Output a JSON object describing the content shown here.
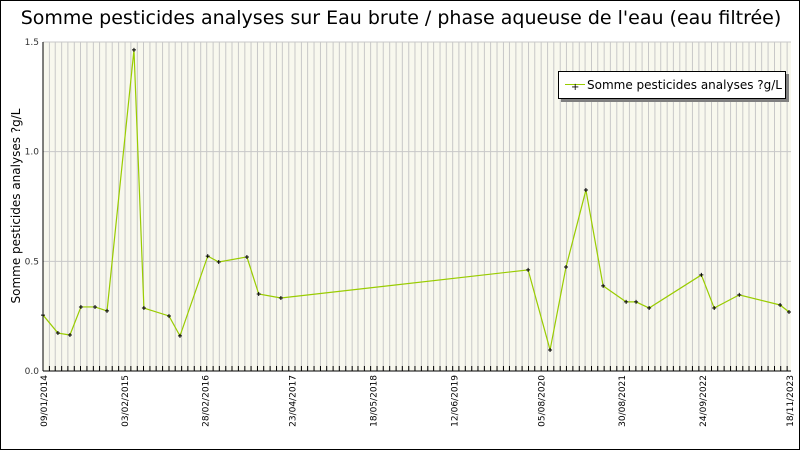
{
  "chart_data": {
    "type": "line",
    "title": "Somme pesticides analyses sur Eau brute / phase aqueuse de l'eau (eau filtrée)",
    "ylabel": "Somme pesticides analyses ?g/L",
    "xlabel": "",
    "ylim": [
      0,
      1.5
    ],
    "xlim": [
      "2014-01-09",
      "2023-11-18"
    ],
    "yticks": [
      "0.0",
      "0.5",
      "1.0",
      "1.5"
    ],
    "xticks": [
      {
        "label": "09/01/2014",
        "date": "2014-01-09"
      },
      {
        "label": "03/02/2015",
        "date": "2015-02-03"
      },
      {
        "label": "28/02/2016",
        "date": "2016-02-28"
      },
      {
        "label": "23/04/2017",
        "date": "2017-04-23"
      },
      {
        "label": "18/05/2018",
        "date": "2018-05-18"
      },
      {
        "label": "12/06/2019",
        "date": "2019-06-12"
      },
      {
        "label": "05/08/2020",
        "date": "2020-08-05"
      },
      {
        "label": "30/08/2021",
        "date": "2021-08-30"
      },
      {
        "label": "24/09/2022",
        "date": "2022-09-24"
      },
      {
        "label": "18/11/2023",
        "date": "2023-11-18"
      }
    ],
    "grid": true,
    "legend_position": "top-right",
    "series": [
      {
        "name": "Somme pesticides analyses ?g/L",
        "color": "#99cc00",
        "marker_color": "#000000",
        "x": [
          "2014-01-09",
          "2014-03-22",
          "2014-05-19",
          "2014-07-11",
          "2014-09-17",
          "2014-11-14",
          "2015-03-24",
          "2015-05-11",
          "2015-09-09",
          "2015-11-01",
          "2016-03-14",
          "2016-05-06",
          "2016-09-19",
          "2016-11-15",
          "2017-03-02",
          "2020-06-07",
          "2020-09-21",
          "2020-12-07",
          "2021-03-13",
          "2021-06-04",
          "2021-09-23",
          "2021-11-10",
          "2022-01-12",
          "2022-09-21",
          "2022-11-22",
          "2023-03-23",
          "2023-10-06",
          "2023-11-18"
        ],
        "y": [
          0.255,
          0.173,
          0.164,
          0.292,
          0.292,
          0.274,
          1.464,
          0.287,
          0.251,
          0.16,
          0.524,
          0.497,
          0.52,
          0.351,
          0.333,
          0.461,
          0.096,
          0.474,
          0.825,
          0.388,
          0.315,
          0.315,
          0.287,
          0.438,
          0.287,
          0.347,
          0.301,
          0.269
        ]
      }
    ]
  }
}
